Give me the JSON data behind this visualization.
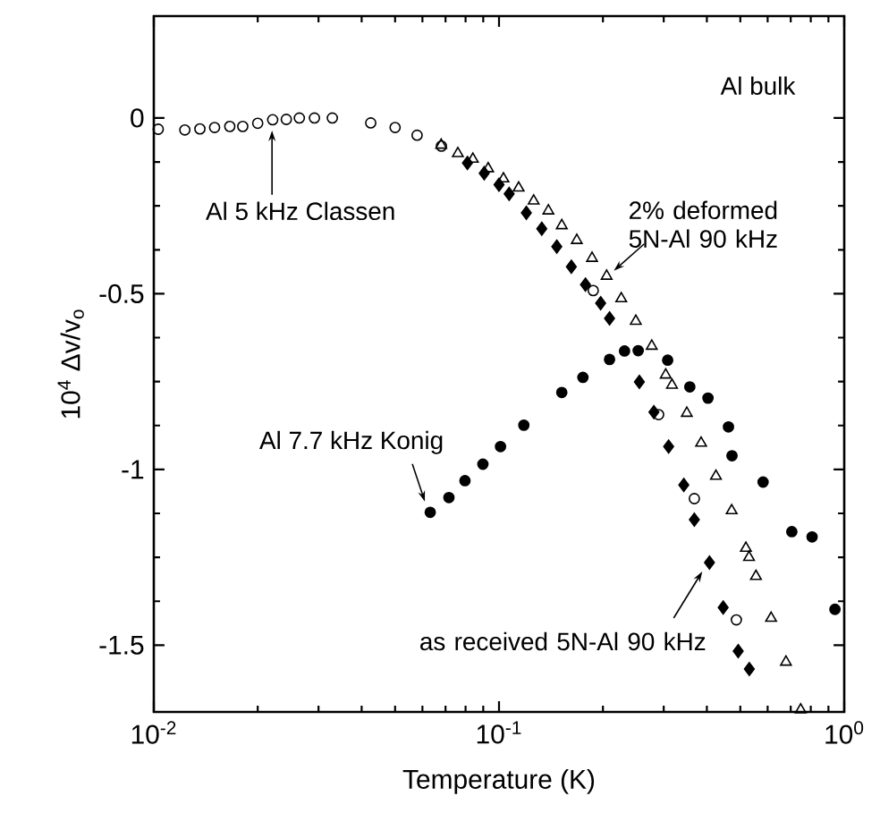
{
  "chart_data": {
    "type": "scatter",
    "xlabel": "Temperature (K)",
    "ylabel": "10$^{4}$ Δv/v$_{o}$",
    "log": "x",
    "xlim": [
      0.01,
      1
    ],
    "ylim": [
      -1.69,
      0.29
    ],
    "xticks": [
      {
        "value": 0.01,
        "label": "10$^{-2}$"
      },
      {
        "value": 0.1,
        "label": "10$^{-1}$"
      },
      {
        "value": 1,
        "label": "10$^{0}$"
      }
    ],
    "yticks": [
      -1.5,
      -1,
      -0.5,
      0
    ],
    "series": [
      {
        "color": "#000000",
        "marker": "circle",
        "x": [
          0.0103,
          0.0123,
          0.0136,
          0.015,
          0.0166,
          0.0181,
          0.02,
          0.0221,
          0.0242,
          0.0264,
          0.0292,
          0.0329,
          0.0425,
          0.05,
          0.0579,
          0.0681,
          0.1875,
          0.29,
          0.368,
          0.487
        ],
        "values": [
          -0.032,
          -0.034,
          -0.031,
          -0.027,
          -0.024,
          -0.024,
          -0.015,
          -0.005,
          -0.004,
          0,
          0,
          0,
          -0.014,
          -0.027,
          -0.049,
          -0.08,
          -0.491,
          -0.844,
          -1.083,
          -1.428
        ]
      },
      {
        "color": "#000000",
        "marker": "triangle",
        "x": [
          0.068,
          0.076,
          0.084,
          0.093,
          0.103,
          0.114,
          0.126,
          0.139,
          0.152,
          0.168,
          0.186,
          0.205,
          0.226,
          0.249,
          0.277,
          0.304,
          0.317,
          0.35,
          0.385,
          0.425,
          0.472,
          0.519,
          0.53,
          0.555,
          0.614,
          0.678,
          0.748
        ],
        "values": [
          -0.077,
          -0.101,
          -0.117,
          -0.144,
          -0.173,
          -0.199,
          -0.236,
          -0.264,
          -0.306,
          -0.348,
          -0.399,
          -0.45,
          -0.514,
          -0.578,
          -0.649,
          -0.731,
          -0.76,
          -0.84,
          -0.925,
          -1.019,
          -1.117,
          -1.224,
          -1.25,
          -1.304,
          -1.423,
          -1.548,
          -1.684
        ]
      },
      {
        "color": "#000000",
        "marker": "diamond",
        "x": [
          0.081,
          0.0906,
          0.1,
          0.107,
          0.12,
          0.133,
          0.147,
          0.162,
          0.178,
          0.197,
          0.209,
          0.255,
          0.281,
          0.31,
          0.343,
          0.368,
          0.407,
          0.446,
          0.493,
          0.531
        ],
        "values": [
          -0.128,
          -0.157,
          -0.19,
          -0.216,
          -0.27,
          -0.315,
          -0.366,
          -0.423,
          -0.474,
          -0.527,
          -0.57,
          -0.751,
          -0.837,
          -0.935,
          -1.044,
          -1.143,
          -1.265,
          -1.393,
          -1.517,
          -1.568
        ]
      },
      {
        "color": "#000000",
        "marker": "circle",
        "x": [
          0.0632,
          0.0716,
          0.0797,
          0.0898,
          0.101,
          0.118,
          0.152,
          0.175,
          0.209,
          0.231,
          0.253,
          0.308,
          0.357,
          0.403,
          0.462,
          0.473,
          0.582,
          0.705,
          0.807,
          0.94
        ],
        "values": [
          -1.122,
          -1.08,
          -1.032,
          -0.985,
          -0.935,
          -0.874,
          -0.781,
          -0.738,
          -0.687,
          -0.663,
          -0.662,
          -0.689,
          -0.765,
          -0.797,
          -0.879,
          -0.961,
          -1.036,
          -1.177,
          -1.192,
          -1.398
        ]
      }
    ],
    "annotations": [
      "Al bulk",
      {
        "text": "Al 5 kHz Classen",
        "x": 0.022,
        "y": -0.01
      },
      {
        "text": "2% deformed 5N-Al 90 kHz",
        "x": 0.205,
        "y": -0.45
      },
      {
        "text": "Al 7.7 kHz Konig",
        "x": 0.0632,
        "y": -1.122
      },
      {
        "text": "as received 5N-Al 90 kHz",
        "x": 0.407,
        "y": -1.265
      }
    ]
  }
}
